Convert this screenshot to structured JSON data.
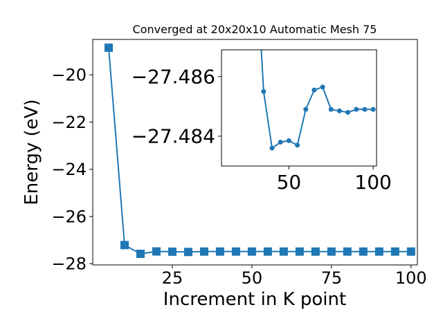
{
  "chart_data": [
    {
      "type": "line",
      "title": "Converged at 20x20x10 Automatic Mesh 75",
      "xlabel": "Increment in K point",
      "ylabel": "Energy (eV)",
      "xlim": [
        0,
        102
      ],
      "ylim": [
        -28.05,
        -18.5
      ],
      "xticks": [
        25,
        50,
        75,
        100
      ],
      "xtick_labels": [
        "25",
        "50",
        "75",
        "100"
      ],
      "yticks": [
        -28,
        -26,
        -24,
        -22,
        -20
      ],
      "ytick_labels": [
        "−28",
        "−26",
        "−24",
        "−22",
        "−20"
      ],
      "grid": false,
      "marker": "square",
      "color": "#1f77b4",
      "series": [
        {
          "x": [
            5,
            10,
            15,
            20,
            25,
            30,
            35,
            40,
            45,
            50,
            55,
            60,
            65,
            70,
            75,
            80,
            85,
            90,
            95,
            100
          ],
          "y": [
            -18.85,
            -27.21,
            -27.58,
            -27.48,
            -27.49,
            -27.5,
            -27.484,
            -27.484,
            -27.484,
            -27.484,
            -27.484,
            -27.484,
            -27.485,
            -27.486,
            -27.485,
            -27.485,
            -27.485,
            -27.485,
            -27.485,
            -27.485
          ]
        }
      ]
    },
    {
      "type": "line",
      "role": "inset",
      "xlim": [
        10,
        102
      ],
      "ylim": [
        -27.483,
        -27.4869
      ],
      "xticks": [
        50,
        100
      ],
      "xtick_labels": [
        "50",
        "100"
      ],
      "yticks": [
        -27.486,
        -27.484
      ],
      "ytick_labels": [
        "−27.486",
        "−27.484"
      ],
      "grid": false,
      "marker": "circle",
      "color": "#1f77b4",
      "series": [
        {
          "x": [
            30,
            35,
            40,
            45,
            50,
            55,
            60,
            65,
            70,
            75,
            80,
            85,
            90,
            95,
            100
          ],
          "y": [
            -27.4905,
            -27.4855,
            -27.4836,
            -27.4838,
            -27.48385,
            -27.4837,
            -27.4849,
            -27.48555,
            -27.48565,
            -27.4849,
            -27.48485,
            -27.4848,
            -27.4849,
            -27.4849,
            -27.4849
          ]
        }
      ]
    }
  ]
}
